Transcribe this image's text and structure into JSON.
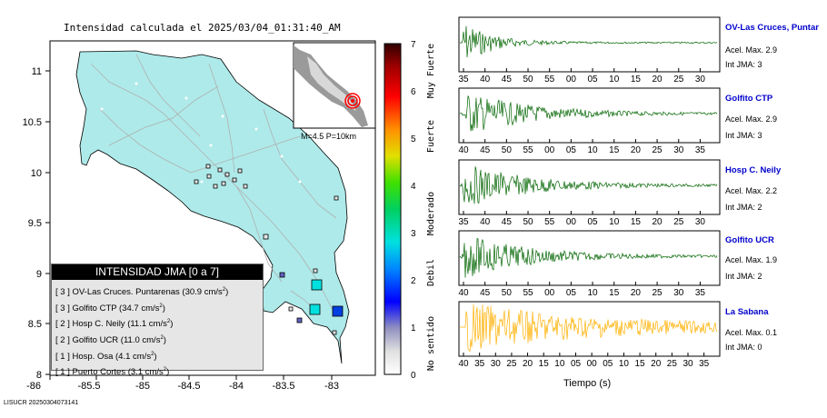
{
  "title": "Intensidad calculada el 2025/03/04_01:31:40_AM",
  "map": {
    "x_ticks": [
      "-86",
      "-85.5",
      "-85",
      "-84.5",
      "-84",
      "-83.5",
      "-83"
    ],
    "y_ticks": [
      "11",
      "10.5",
      "10",
      "9.5",
      "9",
      "8.5",
      "8"
    ],
    "inset_label": "M=4.5 P=10km",
    "colors": {
      "land": "#aeeaea",
      "roads": "#b0b0b0",
      "outline": "#000000"
    }
  },
  "colorbar": {
    "values": [
      "7",
      "6",
      "5",
      "4",
      "3",
      "2",
      "1",
      "0"
    ],
    "labels": [
      "Muy Fuerte",
      "Fuerte",
      "Moderado",
      "Debil",
      "No sentido"
    ]
  },
  "legend": {
    "title": "INTENSIDAD JMA [0 a 7]",
    "entries": [
      {
        "level": "[ 3 ]",
        "text": "OV-Las Cruces. Puntarenas (30.9 cm/s",
        "sup": "2",
        "close": ")"
      },
      {
        "level": "[ 3 ]",
        "text": "Golfito CTP (34.7 cm/s",
        "sup": "2",
        "close": ")"
      },
      {
        "level": "[ 2 ]",
        "text": "Hosp C. Neily (11.1 cm/s",
        "sup": "2",
        "close": ")"
      },
      {
        "level": "[ 2 ]",
        "text": "Golfito UCR (11.0 cm/s",
        "sup": "2",
        "close": ")"
      },
      {
        "level": "[ 1 ]",
        "text": "Hosp. Osa (4.1 cm/s",
        "sup": "2",
        "close": ")"
      },
      {
        "level": "[ 1 ]",
        "text": "Puerto Cortes (3.1 cm/s",
        "sup": "2",
        "close": ")"
      }
    ]
  },
  "footer": "LISUCR 20250304073141",
  "waveforms": [
    {
      "name": "OV-Las Cruces, Puntar",
      "acc": "Acel. Max. 2.9",
      "jma": "Int JMA: 3",
      "color": "#006400",
      "ticks": [
        "35",
        "40",
        "45",
        "50",
        "55",
        "00",
        "05",
        "10",
        "15",
        "20",
        "25",
        "30"
      ]
    },
    {
      "name": "Golfito CTP",
      "acc": "Acel. Max. 2.9",
      "jma": "Int JMA: 3",
      "color": "#006400",
      "ticks": [
        "40",
        "45",
        "50",
        "55",
        "00",
        "05",
        "10",
        "15",
        "20",
        "25",
        "30",
        "35"
      ]
    },
    {
      "name": "Hosp C. Neily",
      "acc": "Acel. Max. 2.2",
      "jma": "Int JMA: 2",
      "color": "#006400",
      "ticks": [
        "35",
        "40",
        "45",
        "50",
        "55",
        "00",
        "05",
        "10",
        "15",
        "20",
        "25",
        "30"
      ]
    },
    {
      "name": "Golfito UCR",
      "acc": "Acel. Max. 1.9",
      "jma": "Int JMA: 2",
      "color": "#006400",
      "ticks": [
        "40",
        "45",
        "50",
        "55",
        "00",
        "05",
        "10",
        "15",
        "20",
        "25",
        "30",
        "35"
      ]
    },
    {
      "name": "La Sabana",
      "acc": "Acel. Max. 0.1",
      "jma": "Int JMA: 0",
      "color": "#ffb000",
      "ticks": [
        "40",
        "35",
        "30",
        "25",
        "20",
        "15",
        "10",
        "05",
        "00",
        "05",
        "10",
        "15",
        "20",
        "25",
        "30",
        "35"
      ]
    }
  ],
  "xlabel": "Tiempo (s)"
}
